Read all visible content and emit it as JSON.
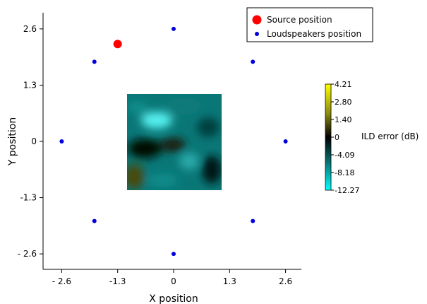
{
  "chart_data": {
    "type": "scatter",
    "xlabel": "X position",
    "ylabel": "Y position",
    "xlim": [
      -3.0,
      3.0
    ],
    "ylim": [
      -3.0,
      3.0
    ],
    "x_ticks": [
      {
        "value": -2.6,
        "label": "- 2.6"
      },
      {
        "value": -1.3,
        "label": "-1.3"
      },
      {
        "value": 0,
        "label": "0"
      },
      {
        "value": 1.3,
        "label": "1.3"
      },
      {
        "value": 2.6,
        "label": "2.6"
      }
    ],
    "y_ticks": [
      {
        "value": 2.6,
        "label": "2.6"
      },
      {
        "value": 1.3,
        "label": "1.3"
      },
      {
        "value": 0,
        "label": "0"
      },
      {
        "value": -1.3,
        "label": "-1.3"
      },
      {
        "value": -2.6,
        "label": "- 2.6"
      }
    ],
    "grid": false,
    "legend_position": "top-right",
    "series": [
      {
        "name": "Source position",
        "color": "#ff0000",
        "marker": "large-circle",
        "points": [
          {
            "x": -1.3,
            "y": 2.25
          }
        ]
      },
      {
        "name": "Loudspeakers position",
        "color": "#0000dd",
        "marker": "small-circle",
        "points": [
          {
            "x": 0,
            "y": 2.6
          },
          {
            "x": 1.84,
            "y": 1.84
          },
          {
            "x": 2.6,
            "y": 0
          },
          {
            "x": 1.84,
            "y": -1.84
          },
          {
            "x": 0,
            "y": -2.6
          },
          {
            "x": -1.84,
            "y": -1.84
          },
          {
            "x": -2.6,
            "y": 0
          },
          {
            "x": -1.84,
            "y": 1.84
          }
        ]
      }
    ],
    "heatmap": {
      "x_range": [
        -1.1,
        1.1
      ],
      "y_range": [
        -1.1,
        1.1
      ],
      "colorbar_label": "ILD error (dB)",
      "colorbar_ticks": [
        "4.21",
        "2.80",
        "1.40",
        "0",
        "-4.09",
        "-8.18",
        "-12.27"
      ],
      "colormap": [
        "#ffff00",
        "#8a8a10",
        "#000000",
        "#0a6a6a",
        "#00ffff"
      ]
    }
  }
}
